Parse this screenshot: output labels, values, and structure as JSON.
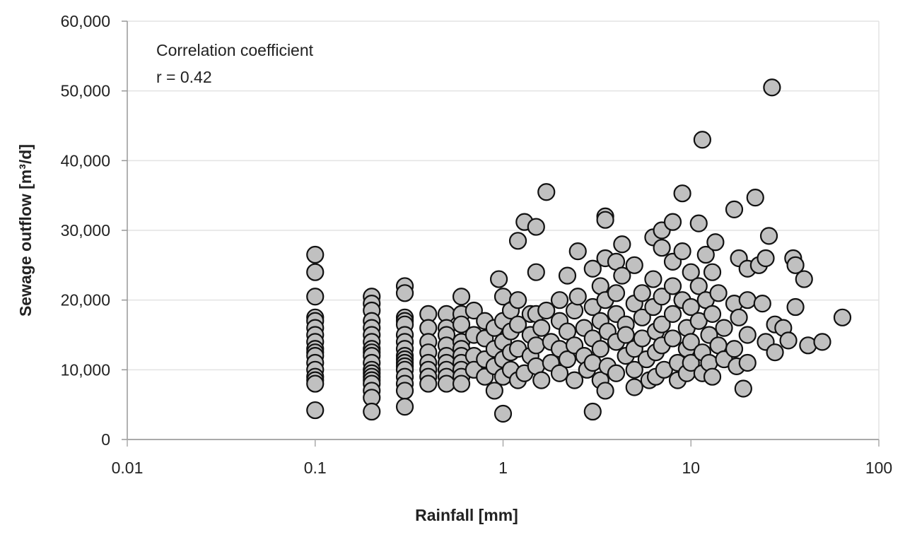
{
  "chart_data": {
    "type": "scatter",
    "title": "",
    "xlabel": "Rainfall [mm]",
    "ylabel": "Sewage outflow [m³/d]",
    "xscale": "log",
    "xlim": [
      0.01,
      100
    ],
    "ylim": [
      0,
      60000
    ],
    "xticks": [
      "0.01",
      "0.1",
      "1",
      "10",
      "100"
    ],
    "yticks": [
      "0",
      "10,000",
      "20,000",
      "30,000",
      "40,000",
      "50,000",
      "60,000"
    ],
    "grid": "horizontal",
    "marker_color": "#c0c0c0",
    "marker_edge_color": "#111111",
    "annotation": [
      "Correlation coefficient",
      "r = 0.42"
    ],
    "points": [
      [
        0.1,
        26500
      ],
      [
        0.1,
        24000
      ],
      [
        0.1,
        20500
      ],
      [
        0.1,
        17500
      ],
      [
        0.1,
        17000
      ],
      [
        0.1,
        16000
      ],
      [
        0.1,
        15000
      ],
      [
        0.1,
        14000
      ],
      [
        0.1,
        13000
      ],
      [
        0.1,
        12500
      ],
      [
        0.1,
        12000
      ],
      [
        0.1,
        11000
      ],
      [
        0.1,
        10000
      ],
      [
        0.1,
        9000
      ],
      [
        0.1,
        8500
      ],
      [
        0.1,
        8000
      ],
      [
        0.1,
        4200
      ],
      [
        0.2,
        20500
      ],
      [
        0.2,
        19500
      ],
      [
        0.2,
        18500
      ],
      [
        0.2,
        17000
      ],
      [
        0.2,
        16000
      ],
      [
        0.2,
        15000
      ],
      [
        0.2,
        14000
      ],
      [
        0.2,
        13000
      ],
      [
        0.2,
        12500
      ],
      [
        0.2,
        12000
      ],
      [
        0.2,
        11000
      ],
      [
        0.2,
        10000
      ],
      [
        0.2,
        9500
      ],
      [
        0.2,
        9000
      ],
      [
        0.2,
        8500
      ],
      [
        0.2,
        8000
      ],
      [
        0.2,
        7000
      ],
      [
        0.2,
        6000
      ],
      [
        0.2,
        4000
      ],
      [
        0.3,
        22000
      ],
      [
        0.3,
        21000
      ],
      [
        0.3,
        17500
      ],
      [
        0.3,
        17000
      ],
      [
        0.3,
        16500
      ],
      [
        0.3,
        15000
      ],
      [
        0.3,
        14000
      ],
      [
        0.3,
        13000
      ],
      [
        0.3,
        12000
      ],
      [
        0.3,
        11500
      ],
      [
        0.3,
        11000
      ],
      [
        0.3,
        10500
      ],
      [
        0.3,
        10000
      ],
      [
        0.3,
        9000
      ],
      [
        0.3,
        8000
      ],
      [
        0.3,
        7000
      ],
      [
        0.3,
        4700
      ],
      [
        0.4,
        18000
      ],
      [
        0.4,
        16000
      ],
      [
        0.4,
        14000
      ],
      [
        0.4,
        12500
      ],
      [
        0.4,
        11000
      ],
      [
        0.4,
        10000
      ],
      [
        0.4,
        9000
      ],
      [
        0.4,
        8000
      ],
      [
        0.5,
        18000
      ],
      [
        0.5,
        16000
      ],
      [
        0.5,
        15000
      ],
      [
        0.5,
        13500
      ],
      [
        0.5,
        12000
      ],
      [
        0.5,
        11000
      ],
      [
        0.5,
        10000
      ],
      [
        0.5,
        9000
      ],
      [
        0.5,
        8000
      ],
      [
        0.6,
        20500
      ],
      [
        0.6,
        18000
      ],
      [
        0.6,
        16500
      ],
      [
        0.6,
        14000
      ],
      [
        0.6,
        13000
      ],
      [
        0.6,
        12000
      ],
      [
        0.6,
        11000
      ],
      [
        0.6,
        10000
      ],
      [
        0.6,
        9000
      ],
      [
        0.6,
        8000
      ],
      [
        0.7,
        18500
      ],
      [
        0.7,
        15000
      ],
      [
        0.7,
        12000
      ],
      [
        0.7,
        10000
      ],
      [
        0.8,
        17000
      ],
      [
        0.8,
        14500
      ],
      [
        0.8,
        11500
      ],
      [
        0.8,
        9000
      ],
      [
        0.9,
        16000
      ],
      [
        0.9,
        13000
      ],
      [
        0.9,
        10500
      ],
      [
        0.9,
        7000
      ],
      [
        0.95,
        23000
      ],
      [
        1,
        20500
      ],
      [
        1,
        17000
      ],
      [
        1,
        14000
      ],
      [
        1,
        11500
      ],
      [
        1,
        9000
      ],
      [
        1,
        3700
      ],
      [
        1.1,
        18500
      ],
      [
        1.1,
        15500
      ],
      [
        1.1,
        12500
      ],
      [
        1.1,
        10000
      ],
      [
        1.2,
        28500
      ],
      [
        1.2,
        20000
      ],
      [
        1.2,
        16500
      ],
      [
        1.2,
        13000
      ],
      [
        1.2,
        8500
      ],
      [
        1.3,
        31200
      ],
      [
        1.3,
        9500
      ],
      [
        1.4,
        18000
      ],
      [
        1.4,
        15000
      ],
      [
        1.4,
        12000
      ],
      [
        1.5,
        30500
      ],
      [
        1.5,
        24000
      ],
      [
        1.5,
        18000
      ],
      [
        1.5,
        13500
      ],
      [
        1.5,
        10500
      ],
      [
        1.6,
        16000
      ],
      [
        1.6,
        8500
      ],
      [
        1.7,
        35500
      ],
      [
        1.7,
        18500
      ],
      [
        1.8,
        14000
      ],
      [
        1.8,
        11000
      ],
      [
        2,
        20000
      ],
      [
        2,
        17000
      ],
      [
        2,
        13000
      ],
      [
        2,
        9500
      ],
      [
        2.2,
        23500
      ],
      [
        2.2,
        15500
      ],
      [
        2.2,
        11500
      ],
      [
        2.4,
        18500
      ],
      [
        2.4,
        13500
      ],
      [
        2.4,
        8500
      ],
      [
        2.5,
        27000
      ],
      [
        2.5,
        20500
      ],
      [
        2.7,
        16000
      ],
      [
        2.7,
        12000
      ],
      [
        2.8,
        10000
      ],
      [
        3,
        24500
      ],
      [
        3,
        19000
      ],
      [
        3,
        14500
      ],
      [
        3,
        11000
      ],
      [
        3,
        4000
      ],
      [
        3.3,
        22000
      ],
      [
        3.3,
        17000
      ],
      [
        3.3,
        13000
      ],
      [
        3.3,
        8500
      ],
      [
        3.5,
        32000
      ],
      [
        3.5,
        31500
      ],
      [
        3.5,
        26000
      ],
      [
        3.5,
        20000
      ],
      [
        3.5,
        7000
      ],
      [
        3.6,
        15500
      ],
      [
        3.6,
        10500
      ],
      [
        4,
        25500
      ],
      [
        4,
        21000
      ],
      [
        4,
        18000
      ],
      [
        4,
        14000
      ],
      [
        4,
        9500
      ],
      [
        4.3,
        28000
      ],
      [
        4.3,
        23500
      ],
      [
        4.5,
        16500
      ],
      [
        4.5,
        12000
      ],
      [
        4.5,
        15000
      ],
      [
        5,
        25000
      ],
      [
        5,
        19500
      ],
      [
        5,
        13000
      ],
      [
        5,
        10000
      ],
      [
        5,
        7500
      ],
      [
        5.5,
        21000
      ],
      [
        5.5,
        17500
      ],
      [
        5.5,
        14500
      ],
      [
        5.8,
        11500
      ],
      [
        6,
        8500
      ],
      [
        6.3,
        29000
      ],
      [
        6.3,
        23000
      ],
      [
        6.3,
        19000
      ],
      [
        6.5,
        15500
      ],
      [
        6.5,
        12500
      ],
      [
        6.5,
        9000
      ],
      [
        7,
        30000
      ],
      [
        7,
        27500
      ],
      [
        7,
        20500
      ],
      [
        7,
        16500
      ],
      [
        7,
        13500
      ],
      [
        7.2,
        10000
      ],
      [
        8,
        31200
      ],
      [
        8,
        25500
      ],
      [
        8,
        22000
      ],
      [
        8,
        18000
      ],
      [
        8,
        14500
      ],
      [
        8.5,
        11000
      ],
      [
        8.5,
        8500
      ],
      [
        9,
        35300
      ],
      [
        9,
        27000
      ],
      [
        9,
        20000
      ],
      [
        9.5,
        16000
      ],
      [
        9.5,
        13000
      ],
      [
        9.5,
        9500
      ],
      [
        10,
        24000
      ],
      [
        10,
        19000
      ],
      [
        10,
        14000
      ],
      [
        10,
        11000
      ],
      [
        11,
        31000
      ],
      [
        11.5,
        43000
      ],
      [
        11,
        22000
      ],
      [
        11,
        17000
      ],
      [
        11.5,
        12500
      ],
      [
        11.5,
        9500
      ],
      [
        12,
        26500
      ],
      [
        12,
        20000
      ],
      [
        12.5,
        15000
      ],
      [
        12.5,
        11000
      ],
      [
        13,
        24000
      ],
      [
        13,
        18000
      ],
      [
        13,
        9000
      ],
      [
        13.5,
        28300
      ],
      [
        14,
        21000
      ],
      [
        14,
        13500
      ],
      [
        15,
        16000
      ],
      [
        15,
        11500
      ],
      [
        17,
        33000
      ],
      [
        17,
        19500
      ],
      [
        17,
        13000
      ],
      [
        17.5,
        10500
      ],
      [
        18,
        26000
      ],
      [
        18,
        17500
      ],
      [
        19,
        7300
      ],
      [
        20,
        24500
      ],
      [
        20,
        20000
      ],
      [
        20,
        15000
      ],
      [
        20,
        11000
      ],
      [
        22,
        34700
      ],
      [
        23,
        25000
      ],
      [
        24,
        19500
      ],
      [
        25,
        26000
      ],
      [
        25,
        14000
      ],
      [
        26,
        29200
      ],
      [
        27,
        50500
      ],
      [
        28,
        16500
      ],
      [
        28,
        12500
      ],
      [
        31,
        16000
      ],
      [
        33,
        14200
      ],
      [
        35,
        26000
      ],
      [
        36,
        25000
      ],
      [
        36,
        19000
      ],
      [
        40,
        23000
      ],
      [
        42,
        13500
      ],
      [
        50,
        14000
      ],
      [
        64,
        17500
      ]
    ]
  }
}
